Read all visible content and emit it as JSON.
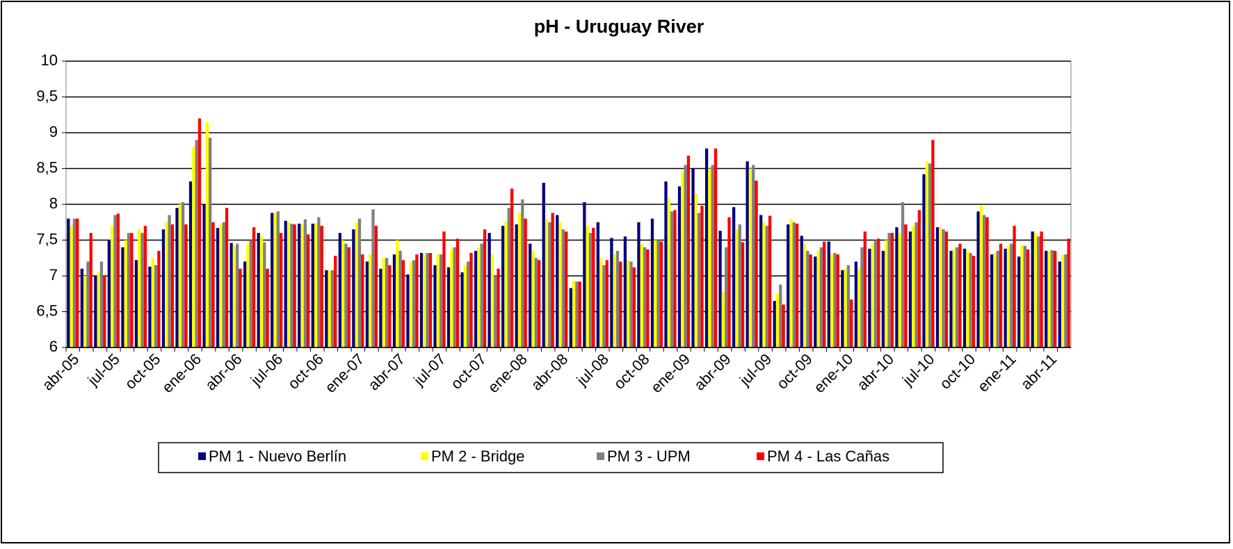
{
  "chart_data": {
    "type": "bar",
    "title": "pH - Uruguay River",
    "categories": [
      "abr-05",
      null,
      null,
      "jul-05",
      null,
      null,
      "oct-05",
      null,
      null,
      "ene-06",
      null,
      null,
      "abr-06",
      null,
      null,
      "jul-06",
      null,
      null,
      "oct-06",
      null,
      null,
      "ene-07",
      null,
      null,
      "abr-07",
      null,
      null,
      "jul-07",
      null,
      null,
      "oct-07",
      null,
      null,
      "ene-08",
      null,
      null,
      "abr-08",
      null,
      null,
      "jul-08",
      null,
      null,
      "oct-08",
      null,
      null,
      "ene-09",
      null,
      null,
      "abr-09",
      null,
      null,
      "jul-09",
      null,
      null,
      "oct-09",
      null,
      null,
      "ene-10",
      null,
      null,
      "abr-10",
      null,
      null,
      "jul-10",
      null,
      null,
      "oct-10",
      null,
      null,
      "ene-11",
      null,
      null,
      "abr-11",
      null
    ],
    "series": [
      {
        "name": "PM 1 - Nuevo Berlín",
        "color": "#000080",
        "values": [
          7.8,
          7.1,
          7.0,
          7.5,
          7.4,
          7.22,
          7.13,
          7.65,
          7.95,
          8.32,
          8.0,
          7.67,
          7.46,
          7.2,
          7.6,
          7.88,
          7.77,
          7.73,
          7.73,
          7.08,
          7.6,
          7.65,
          7.2,
          7.1,
          7.3,
          7.02,
          7.32,
          7.15,
          7.12,
          7.05,
          7.35,
          7.6,
          7.7,
          7.72,
          7.45,
          8.3,
          7.85,
          6.83,
          8.03,
          7.75,
          7.53,
          7.55,
          7.75,
          7.8,
          8.32,
          8.25,
          8.5,
          8.78,
          7.63,
          7.96,
          8.6,
          7.85,
          6.65,
          7.72,
          7.56,
          7.27,
          7.48,
          7.08,
          7.2,
          7.38,
          7.35,
          7.68,
          7.62,
          8.42,
          7.68,
          7.35,
          7.38,
          7.9,
          7.3,
          7.38,
          7.27,
          7.62,
          7.35,
          7.2
        ]
      },
      {
        "name": "PM 2 - Bridge",
        "color": "#ffff00",
        "values": [
          7.7,
          7.0,
          7.05,
          7.7,
          7.5,
          7.65,
          7.25,
          7.75,
          8.0,
          8.8,
          9.15,
          7.72,
          7.42,
          7.45,
          7.55,
          7.88,
          7.75,
          7.72,
          7.74,
          7.08,
          7.5,
          7.75,
          7.3,
          7.25,
          7.5,
          7.2,
          7.3,
          7.3,
          7.38,
          7.15,
          7.4,
          7.3,
          7.75,
          7.88,
          7.35,
          7.8,
          7.75,
          6.93,
          7.7,
          7.25,
          7.3,
          7.22,
          7.45,
          7.5,
          8.08,
          8.45,
          8.15,
          8.5,
          6.78,
          7.65,
          8.5,
          7.75,
          6.75,
          7.8,
          7.45,
          7.35,
          7.3,
          7.1,
          7.1,
          7.45,
          7.5,
          7.6,
          7.7,
          8.6,
          7.68,
          7.38,
          7.35,
          7.98,
          7.32,
          7.42,
          7.43,
          7.6,
          7.35,
          7.3
        ]
      },
      {
        "name": "PM 3 - UPM",
        "color": "#808080",
        "values": [
          7.8,
          7.2,
          7.2,
          7.85,
          7.6,
          7.6,
          7.15,
          7.85,
          8.03,
          8.9,
          8.93,
          7.75,
          7.45,
          7.5,
          7.47,
          7.9,
          7.73,
          7.79,
          7.82,
          7.08,
          7.45,
          7.8,
          7.93,
          7.25,
          7.35,
          7.22,
          7.32,
          7.3,
          7.4,
          7.2,
          7.45,
          7.0,
          7.95,
          8.07,
          7.25,
          7.75,
          7.65,
          6.92,
          7.6,
          7.15,
          7.35,
          7.2,
          7.4,
          7.5,
          7.9,
          8.55,
          7.88,
          8.55,
          7.4,
          7.72,
          8.55,
          7.7,
          6.88,
          7.75,
          7.35,
          7.4,
          7.32,
          7.15,
          7.4,
          7.5,
          7.6,
          8.03,
          7.75,
          8.57,
          7.65,
          7.4,
          7.32,
          7.85,
          7.35,
          7.45,
          7.42,
          7.55,
          7.36,
          7.3
        ]
      },
      {
        "name": "PM 4 - Las Cañas",
        "color": "#ff0000",
        "values": [
          7.8,
          7.6,
          7.0,
          7.87,
          7.6,
          7.7,
          7.35,
          7.72,
          7.72,
          9.2,
          7.75,
          7.95,
          7.1,
          7.68,
          7.1,
          7.6,
          7.72,
          7.58,
          7.7,
          7.28,
          7.4,
          7.3,
          7.7,
          7.15,
          7.22,
          7.3,
          7.32,
          7.62,
          7.52,
          7.32,
          7.65,
          7.1,
          8.22,
          7.8,
          7.22,
          7.88,
          7.62,
          6.92,
          7.67,
          7.22,
          7.2,
          7.12,
          7.37,
          7.48,
          7.92,
          8.68,
          7.98,
          8.78,
          7.82,
          7.47,
          8.33,
          7.84,
          6.6,
          7.73,
          7.3,
          7.48,
          7.3,
          6.67,
          7.62,
          7.52,
          7.6,
          7.72,
          7.92,
          8.9,
          7.62,
          7.45,
          7.28,
          7.82,
          7.45,
          7.7,
          7.37,
          7.62,
          7.35,
          7.52
        ]
      }
    ],
    "ylim": [
      6,
      10
    ],
    "yticks": [
      6,
      {
        "value": 6.5,
        "label": "6,5"
      },
      7,
      {
        "value": 7.5,
        "label": "7,5"
      },
      8,
      {
        "value": 8.5,
        "label": "8,5"
      },
      9,
      {
        "value": 9.5,
        "label": "9,5"
      },
      10
    ],
    "grid": true,
    "legend": "bottom"
  }
}
